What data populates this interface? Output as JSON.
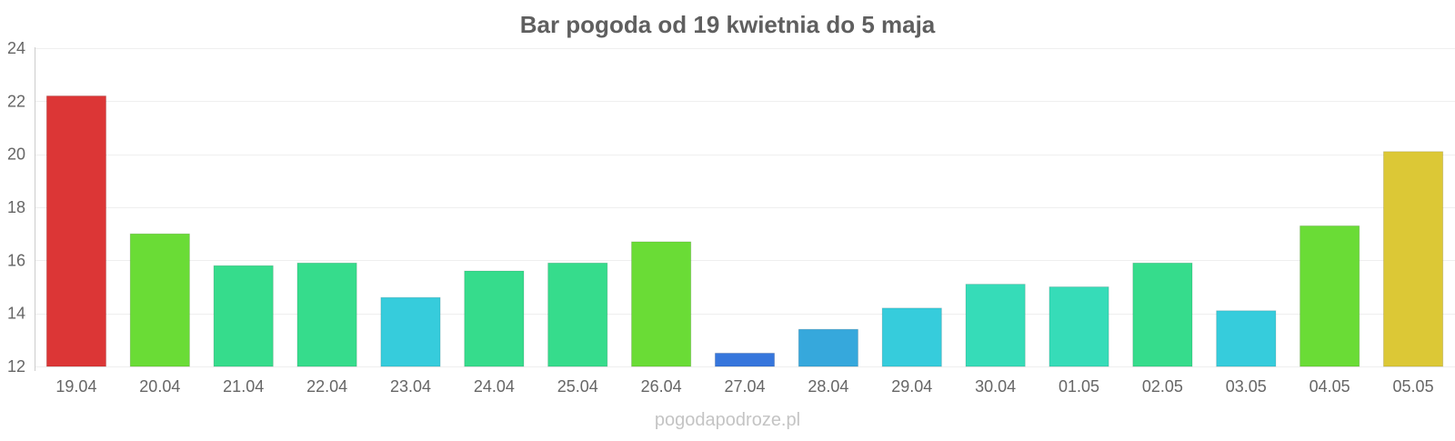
{
  "chart_data": {
    "type": "bar",
    "title": "Bar pogoda od 19 kwietnia do 5 maja",
    "xlabel": "",
    "ylabel": "",
    "ylim": [
      12,
      24
    ],
    "yticks": [
      12,
      14,
      16,
      18,
      20,
      22,
      24
    ],
    "grid": true,
    "categories": [
      "19.04",
      "20.04",
      "21.04",
      "22.04",
      "23.04",
      "24.04",
      "25.04",
      "26.04",
      "27.04",
      "28.04",
      "29.04",
      "30.04",
      "01.05",
      "02.05",
      "03.05",
      "04.05",
      "05.05"
    ],
    "values": [
      22.2,
      17.0,
      15.8,
      15.9,
      14.6,
      15.6,
      15.9,
      16.7,
      12.5,
      13.4,
      14.2,
      15.1,
      15.0,
      15.9,
      14.1,
      17.3,
      20.1
    ],
    "colors": [
      "#dc3636",
      "#6adc36",
      "#36dc8c",
      "#36dc8c",
      "#36ccdc",
      "#36dc8c",
      "#36dc8c",
      "#6adc36",
      "#3676dc",
      "#36a8dc",
      "#36ccdc",
      "#36dcb8",
      "#36dcb8",
      "#36dc8c",
      "#36ccdc",
      "#6adc36",
      "#dcc836"
    ]
  },
  "watermark": "pogodapodroze.pl"
}
